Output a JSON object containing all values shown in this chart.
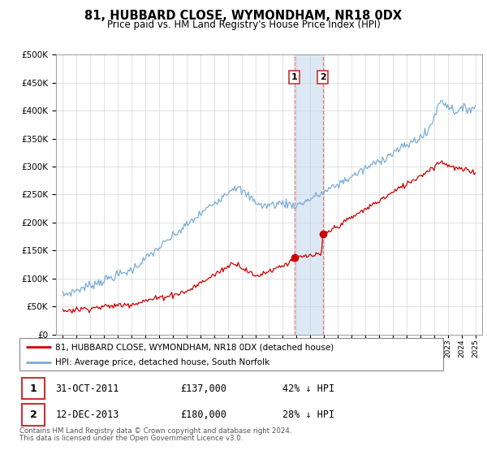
{
  "title": "81, HUBBARD CLOSE, WYMONDHAM, NR18 0DX",
  "subtitle": "Price paid vs. HM Land Registry's House Price Index (HPI)",
  "legend_line1": "81, HUBBARD CLOSE, WYMONDHAM, NR18 0DX (detached house)",
  "legend_line2": "HPI: Average price, detached house, South Norfolk",
  "footnote1": "Contains HM Land Registry data © Crown copyright and database right 2024.",
  "footnote2": "This data is licensed under the Open Government Licence v3.0.",
  "transaction1_date": "31-OCT-2011",
  "transaction1_price": "£137,000",
  "transaction1_hpi": "42% ↓ HPI",
  "transaction1_x": 2011.833,
  "transaction1_y": 137000,
  "transaction2_date": "12-DEC-2013",
  "transaction2_price": "£180,000",
  "transaction2_hpi": "28% ↓ HPI",
  "transaction2_x": 2013.917,
  "transaction2_y": 180000,
  "hpi_color": "#7aadd4",
  "price_color": "#cc0000",
  "highlight_color": "#dce9f5",
  "vline_color": "#e08080",
  "ylim": [
    0,
    500000
  ],
  "yticks": [
    0,
    50000,
    100000,
    150000,
    200000,
    250000,
    300000,
    350000,
    400000,
    450000,
    500000
  ],
  "xlim_start": 1994.5,
  "xlim_end": 2025.5
}
